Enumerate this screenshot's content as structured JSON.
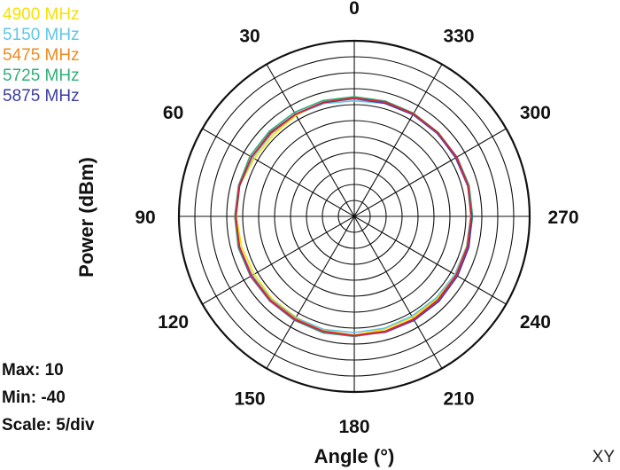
{
  "chart_data": {
    "type": "polar-line",
    "xlabel": "Angle  (°)",
    "ylabel": "Power  (dBm)",
    "range": [
      -40,
      10
    ],
    "scale_step": 5,
    "angle_direction": "counterclockwise",
    "zero_at": "top",
    "angle_tick_labels": [
      "0",
      "30",
      "60",
      "90",
      "120",
      "150",
      "180",
      "210",
      "240",
      "270",
      "300",
      "330"
    ],
    "stats": {
      "max": "Max: 10",
      "min": "Min: -40",
      "scale": "Scale: 5/div"
    },
    "tag": "XY",
    "angles": [
      0,
      15,
      30,
      45,
      60,
      75,
      90,
      105,
      120,
      135,
      150,
      165,
      180,
      195,
      210,
      225,
      240,
      255,
      270,
      285,
      300,
      315,
      330,
      345
    ],
    "series": [
      {
        "name": "4900 MHz",
        "color": "#f5e200",
        "values": [
          -2.5,
          -3,
          -3.5,
          -4,
          -3.8,
          -2.8,
          -3,
          -3.4,
          -3.8,
          -3.5,
          -3.5,
          -3,
          -2.8,
          -3.4,
          -3.5,
          -3.4,
          -3.6,
          -3.6,
          -3.5,
          -3.1,
          -2.9,
          -3.0,
          -2.8,
          -2.9
        ]
      },
      {
        "name": "5150 MHz",
        "color": "#5fc6e8",
        "values": [
          -3.8,
          -3.4,
          -3.2,
          -3.4,
          -3.2,
          -2.8,
          -2.6,
          -2.8,
          -3.1,
          -3.2,
          -3.3,
          -3.3,
          -3.6,
          -3.7,
          -3.9,
          -3.8,
          -3.6,
          -3.5,
          -3.5,
          -3.1,
          -3.0,
          -3.3,
          -3.2,
          -3.3
        ]
      },
      {
        "name": "5475 MHz",
        "color": "#f08a1e",
        "values": [
          -2.9,
          -2.9,
          -3.1,
          -3.1,
          -2.8,
          -2.6,
          -2.7,
          -2.7,
          -2.8,
          -2.9,
          -3.0,
          -2.8,
          -2.8,
          -2.8,
          -2.9,
          -3.0,
          -3.2,
          -3.3,
          -3.3,
          -3.0,
          -2.9,
          -3.0,
          -2.8,
          -2.8
        ]
      },
      {
        "name": "5725 MHz",
        "color": "#2fb07a",
        "values": [
          -2.5,
          -2.4,
          -2.4,
          -2.3,
          -2.2,
          -2.4,
          -2.5,
          -2.3,
          -2.4,
          -2.5,
          -2.4,
          -2.2,
          -2.4,
          -2.6,
          -2.7,
          -2.8,
          -2.9,
          -2.9,
          -2.9,
          -2.7,
          -2.8,
          -2.8,
          -2.7,
          -2.6
        ]
      },
      {
        "name": "5875 MHz",
        "color": "#3a3ea0",
        "values": [
          -3.1,
          -3.1,
          -3.0,
          -2.8,
          -2.8,
          -2.8,
          -2.9,
          -2.6,
          -2.5,
          -2.6,
          -2.6,
          -2.6,
          -2.6,
          -2.4,
          -2.4,
          -2.4,
          -2.6,
          -2.8,
          -3.1,
          -3.2,
          -3.3,
          -3.2,
          -3.2,
          -3.3
        ]
      },
      {
        "name": "",
        "color": "#c040c0",
        "values": [
          -3.0,
          -2.9,
          -3.0,
          -3.0,
          -2.8,
          -2.6,
          -2.7,
          -2.7,
          -2.6,
          -2.6,
          -2.7,
          -2.6,
          -2.5,
          -2.6,
          -2.7,
          -2.8,
          -3.0,
          -3.2,
          -3.3,
          -3.1,
          -3.0,
          -3.0,
          -3.0,
          -3.0
        ]
      },
      {
        "name": "",
        "color": "#d8202a",
        "values": [
          -2.9,
          -3.0,
          -3.1,
          -3.0,
          -2.8,
          -2.7,
          -2.8,
          -2.8,
          -2.8,
          -2.8,
          -2.8,
          -2.7,
          -2.6,
          -2.7,
          -2.8,
          -2.9,
          -3.1,
          -3.3,
          -3.3,
          -3.0,
          -2.9,
          -2.9,
          -2.9,
          -2.9
        ]
      }
    ]
  }
}
